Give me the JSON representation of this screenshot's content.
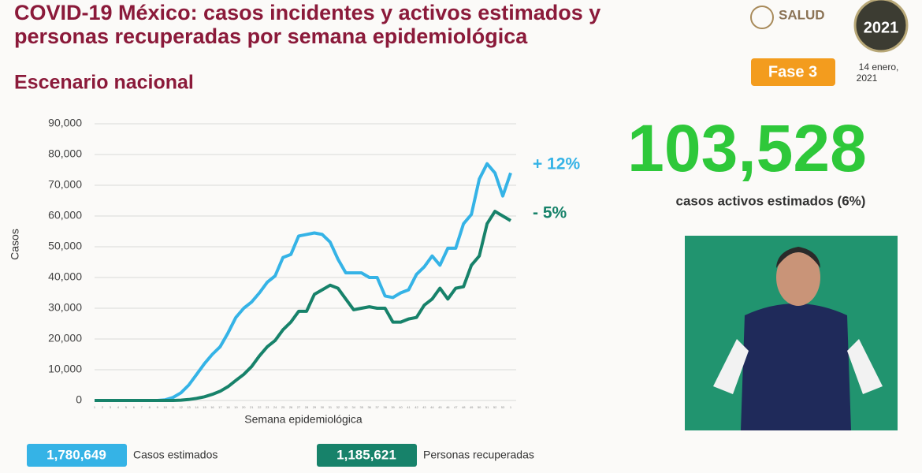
{
  "header": {
    "title": [
      "COVID-19 México: casos incidentes y activos estimados y",
      "personas recuperadas por semana epidemiológica"
    ],
    "subtitle": "Escenario nacional",
    "logo": "SALUD",
    "year": "2021",
    "phase": "Fase 3",
    "date": [
      "14 enero,",
      "2021"
    ]
  },
  "highlight": {
    "value": "103,528",
    "label": "casos activos estimados (6%)"
  },
  "chart_data": {
    "type": "line",
    "x_label": "Semana epidemiológica",
    "y_label": "Casos",
    "categories": [
      "1",
      "2",
      "3",
      "4",
      "5",
      "6",
      "7",
      "8",
      "9",
      "10",
      "11",
      "12",
      "13",
      "14",
      "15",
      "16",
      "17",
      "18",
      "19",
      "20",
      "21",
      "22",
      "23",
      "24",
      "25",
      "26",
      "27",
      "28",
      "29",
      "30",
      "31",
      "32",
      "33",
      "34",
      "35",
      "36",
      "37",
      "38",
      "39",
      "40",
      "41",
      "42",
      "43",
      "44",
      "45",
      "46",
      "47",
      "48",
      "49",
      "50",
      "51",
      "52",
      "53",
      "1"
    ],
    "series": [
      {
        "name": "Casos estimados",
        "total": "1,780,649",
        "color": "#35b3e6",
        "annotation": "+ 12%",
        "values": [
          0,
          0,
          0,
          0,
          0,
          0,
          0,
          0,
          0,
          200,
          1000,
          2500,
          5000,
          8500,
          12000,
          15000,
          17500,
          22000,
          27000,
          30000,
          32000,
          35000,
          38500,
          40500,
          46500,
          47500,
          53500,
          54000,
          54500,
          54000,
          51500,
          46000,
          41500,
          41500,
          41500,
          40000,
          40000,
          34000,
          33500,
          35000,
          36000,
          41000,
          43500,
          47000,
          44000,
          49500,
          49500,
          57500,
          60500,
          72000,
          77000,
          74000,
          66500,
          74000
        ]
      },
      {
        "name": "Personas recuperadas",
        "total": "1,185,621",
        "color": "#17826a",
        "annotation": "- 5%",
        "values": [
          0,
          0,
          0,
          0,
          0,
          0,
          0,
          0,
          0,
          0,
          0,
          100,
          300,
          700,
          1200,
          2000,
          3000,
          4500,
          6500,
          8500,
          11000,
          14500,
          17500,
          19500,
          23000,
          25500,
          29000,
          29000,
          34500,
          36000,
          37500,
          36500,
          33000,
          29500,
          30000,
          30500,
          30000,
          30000,
          25500,
          25500,
          26500,
          27000,
          31000,
          33000,
          36500,
          33000,
          36500,
          37000,
          44000,
          47000,
          57500,
          61500,
          60000,
          58500
        ]
      }
    ],
    "ylim": [
      0,
      90000
    ],
    "yticks": [
      0,
      {
        "value": 10000,
        "label": "10,000"
      },
      {
        "value": 20000,
        "label": "20,000"
      },
      {
        "value": 30000,
        "label": "30,000"
      },
      {
        "value": 40000,
        "label": "40,000"
      },
      {
        "value": 50000,
        "label": "50,000"
      },
      {
        "value": 60000,
        "label": "60,000"
      },
      {
        "value": 70000,
        "label": "70,000"
      },
      {
        "value": 80000,
        "label": "80,000"
      },
      {
        "value": 90000,
        "label": "90,000"
      }
    ],
    "grid": true
  }
}
